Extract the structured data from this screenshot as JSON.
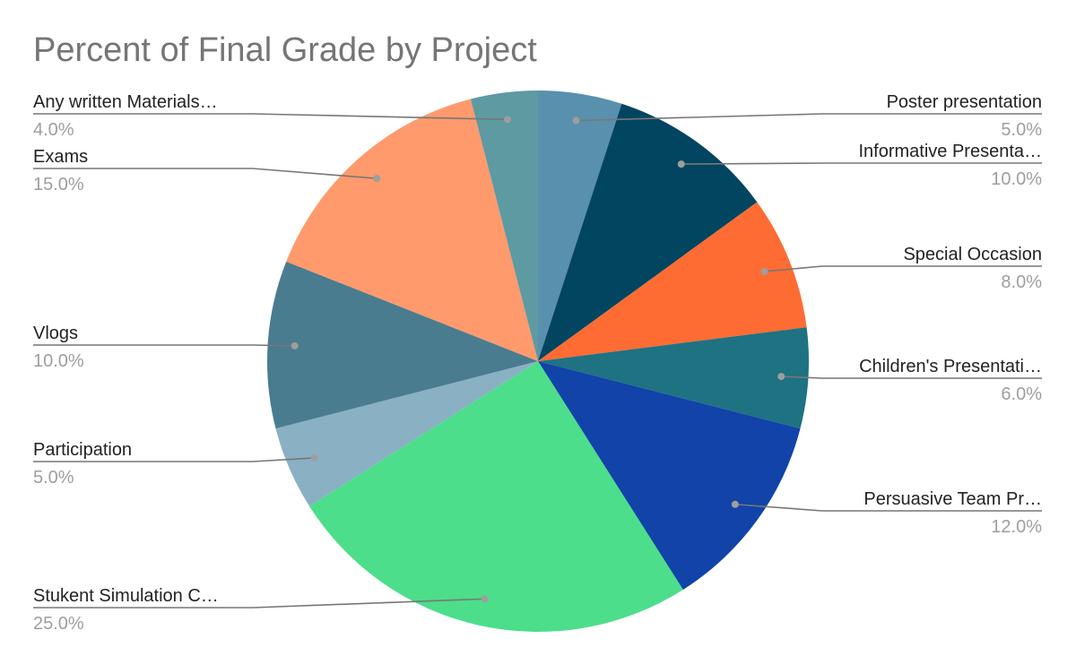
{
  "chart_data": {
    "type": "pie",
    "title": "Percent of Final Grade by Project",
    "slices": [
      {
        "label": "Poster presentation",
        "value": 5.0,
        "display": "5.0%",
        "color": "#5890ae"
      },
      {
        "label": "Informative Presenta…",
        "value": 10.0,
        "display": "10.0%",
        "color": "#024560"
      },
      {
        "label": "Special Occasion",
        "value": 8.0,
        "display": "8.0%",
        "color": "#ff6c33"
      },
      {
        "label": "Children's Presentati…",
        "value": 6.0,
        "display": "6.0%",
        "color": "#1e7282"
      },
      {
        "label": "Persuasive Team Pr…",
        "value": 12.0,
        "display": "12.0%",
        "color": "#1143a9"
      },
      {
        "label": "Stukent Simulation C…",
        "value": 25.0,
        "display": "25.0%",
        "color": "#4cde8b"
      },
      {
        "label": "Participation",
        "value": 5.0,
        "display": "5.0%",
        "color": "#8ab0c4"
      },
      {
        "label": "Vlogs",
        "value": 10.0,
        "display": "10.0%",
        "color": "#4a7c8f"
      },
      {
        "label": "Exams",
        "value": 15.0,
        "display": "15.0%",
        "color": "#ff9a6d"
      },
      {
        "label": "Any written Materials…",
        "value": 4.0,
        "display": "4.0%",
        "color": "#5d9aa2"
      }
    ],
    "legend": "none"
  }
}
